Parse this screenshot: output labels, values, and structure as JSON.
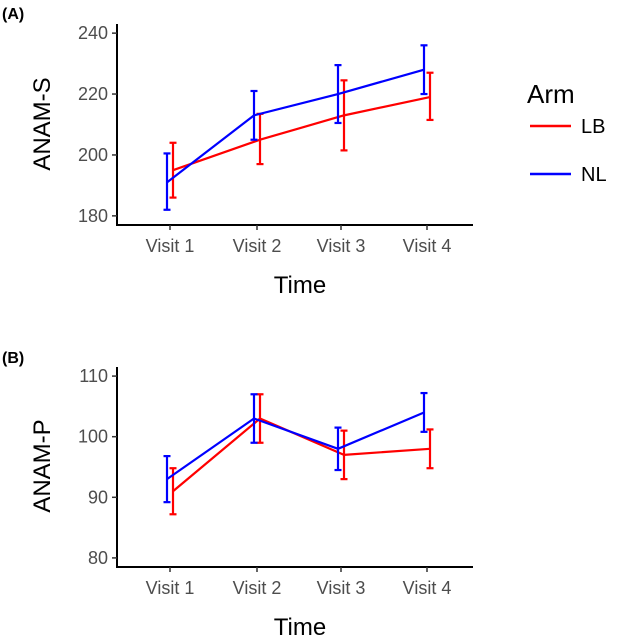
{
  "chart_data": [
    {
      "type": "line",
      "panel_label": "(A)",
      "title": "",
      "xlabel": "Time",
      "ylabel": "ANAM-S",
      "categories": [
        "Visit 1",
        "Visit 2",
        "Visit 3",
        "Visit 4"
      ],
      "ylim": [
        177,
        243
      ],
      "yticks": [
        180,
        200,
        220,
        240
      ],
      "grid": false,
      "series": [
        {
          "name": "LB",
          "color": "#ff0000",
          "values": [
            195,
            205,
            213,
            219
          ],
          "lower": [
            186,
            197,
            201.5,
            211.5
          ],
          "upper": [
            204,
            213.5,
            224.5,
            227
          ]
        },
        {
          "name": "NL",
          "color": "#0000ff",
          "values": [
            191,
            213,
            220,
            228
          ],
          "lower": [
            182,
            205,
            210.5,
            220
          ],
          "upper": [
            200.5,
            221,
            229.5,
            236
          ]
        }
      ]
    },
    {
      "type": "line",
      "panel_label": "(B)",
      "title": "",
      "xlabel": "Time",
      "ylabel": "ANAM-P",
      "categories": [
        "Visit 1",
        "Visit 2",
        "Visit 3",
        "Visit 4"
      ],
      "ylim": [
        78.5,
        111.5
      ],
      "yticks": [
        80,
        90,
        100,
        110
      ],
      "grid": false,
      "series": [
        {
          "name": "LB",
          "color": "#ff0000",
          "values": [
            91,
            103,
            97,
            98
          ],
          "lower": [
            87.2,
            99,
            93,
            94.8
          ],
          "upper": [
            94.8,
            107,
            101,
            101.2
          ]
        },
        {
          "name": "NL",
          "color": "#0000ff",
          "values": [
            93,
            103,
            98,
            104
          ],
          "lower": [
            89.2,
            99,
            94.5,
            100.8
          ],
          "upper": [
            96.8,
            107,
            101.5,
            107.2
          ]
        }
      ]
    }
  ],
  "legend": {
    "title": "Arm",
    "position": "right",
    "items": [
      {
        "label": "LB",
        "color": "#ff0000"
      },
      {
        "label": "NL",
        "color": "#0000ff"
      }
    ]
  }
}
